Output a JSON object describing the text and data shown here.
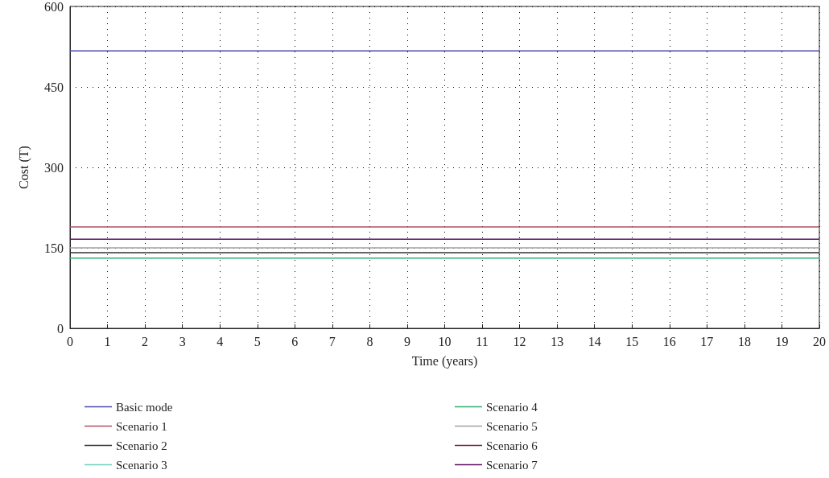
{
  "chart_data": {
    "type": "line",
    "xlabel": "Time (years)",
    "ylabel": "Cost (T)",
    "x": [
      0,
      20
    ],
    "xlim": [
      0,
      20
    ],
    "xticks": [
      0,
      1,
      2,
      3,
      4,
      5,
      6,
      7,
      8,
      9,
      10,
      11,
      12,
      13,
      14,
      15,
      16,
      17,
      18,
      19,
      20
    ],
    "ylim": [
      0,
      600
    ],
    "yticks": [
      0,
      150,
      300,
      450,
      600
    ],
    "grid": true,
    "legend": "bottom",
    "marker": "none",
    "line_style": "solid",
    "series": [
      {
        "name": "Basic mode",
        "color": "#4b4baf",
        "values": [
          517,
          517
        ]
      },
      {
        "name": "Scenario 1",
        "color": "#b05060",
        "values": [
          189,
          189
        ]
      },
      {
        "name": "Scenario 2",
        "color": "#333333",
        "values": [
          141,
          141
        ]
      },
      {
        "name": "Scenario 3",
        "color": "#70d0c0",
        "values": [
          null,
          null
        ]
      },
      {
        "name": "Scenario 4",
        "color": "#30b070",
        "values": [
          131,
          131
        ]
      },
      {
        "name": "Scenario 5",
        "color": "#a0a0a0",
        "values": [
          150,
          150
        ]
      },
      {
        "name": "Scenario 6",
        "color": "#6b2030",
        "values": [
          null,
          null
        ]
      },
      {
        "name": "Scenario 7",
        "color": "#5b1060",
        "values": [
          166,
          166
        ]
      }
    ]
  }
}
